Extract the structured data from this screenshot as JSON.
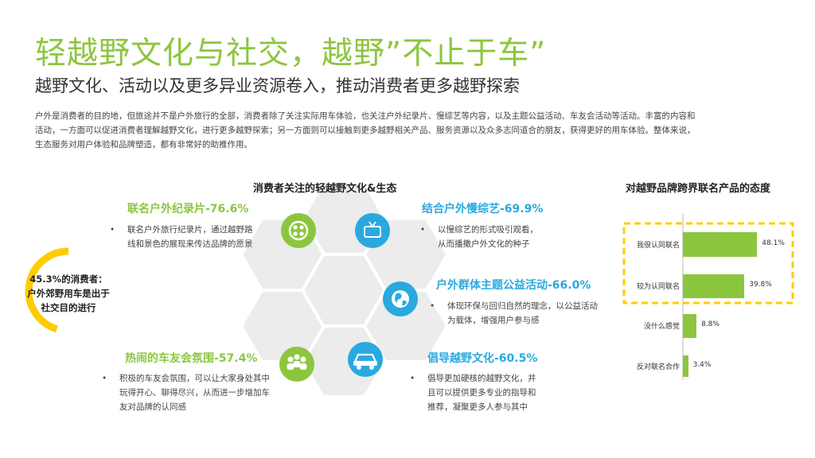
{
  "header": {
    "title": "轻越野文化与社交，越野”不止于车”",
    "subtitle": "越野文化、活动以及更多异业资源卷入，推动消费者更多越野探索",
    "intro_lines": [
      "户外是消费者的目的地，但旅途并不是户外旅行的全部，消费者除了关注实际用车体验，也关注户外纪录片、慢综艺等内容，以及主题公益活动、车友会活动等活动。丰富的内容和",
      "活动，一方面可以促进消费者理解越野文化，进行更多越野探索；另一方面则可以接触到更多越野相关产品、服务资源以及众多志同道合的朋友，获得更好的用车体验。整体来说，",
      "生态服务对用户体验和品牌塑造，都有非常好的助推作用。"
    ]
  },
  "culture": {
    "title": "消费者关注的轻越野文化&生态",
    "items": [
      {
        "title": "联名户外纪录片-76.6%",
        "desc_lines": [
          "联名户外旅行纪录片，通过越野路",
          "线和景色的展现来传达品牌的愿景"
        ]
      },
      {
        "title": "结合户外慢综艺-69.9%",
        "desc_lines": [
          "以慢综艺的形式吸引观看，",
          "从而播撒户外文化的种子"
        ]
      },
      {
        "title": "户外群体主题公益活动-66.0%",
        "desc_lines": [
          "体现环保与回归自然的理念，以公益活动",
          "为载体，增强用户参与感"
        ]
      },
      {
        "title": "热闹的车友会氛围-57.4%",
        "desc_lines": [
          "积极的车友会氛围，可以让大家身处其中",
          "玩得开心、聊得尽兴，从而进一步增加车",
          "友对品牌的认同感"
        ]
      },
      {
        "title": "倡导越野文化-60.5%",
        "desc_lines": [
          "倡导更加硬核的越野文化，并",
          "且可以提供更多专业的指导和",
          "推荐，凝聚更多人参与其中"
        ]
      }
    ],
    "icons": [
      "film-reel-icon",
      "tv-icon",
      "globe-icon",
      "people-group-icon",
      "offroad-car-icon"
    ],
    "stat_lines": [
      "45.3%的消费者：",
      "户外郊野用车是出于",
      "社交目的进行"
    ],
    "stat_value": 45.3,
    "colors": {
      "green": "#8cc63f",
      "blue": "#29a9e0",
      "yellow": "#ffcc00",
      "hex_gray": "#ececec"
    }
  },
  "chart_data": {
    "type": "bar",
    "orientation": "horizontal",
    "title": "对越野品牌跨界联名产品的态度",
    "categories": [
      "我很认同联名",
      "较为认同联名",
      "没什么感觉",
      "反对联名合作"
    ],
    "values": [
      48.1,
      39.8,
      8.8,
      3.4
    ],
    "value_labels": [
      "48.1%",
      "39.8%",
      "8.8%",
      "3.4%"
    ],
    "unit": "%",
    "highlighted": [
      "我很认同联名",
      "较为认同联名"
    ],
    "bar_color": "#8cc63f",
    "highlight_color": "#ffcc00"
  }
}
